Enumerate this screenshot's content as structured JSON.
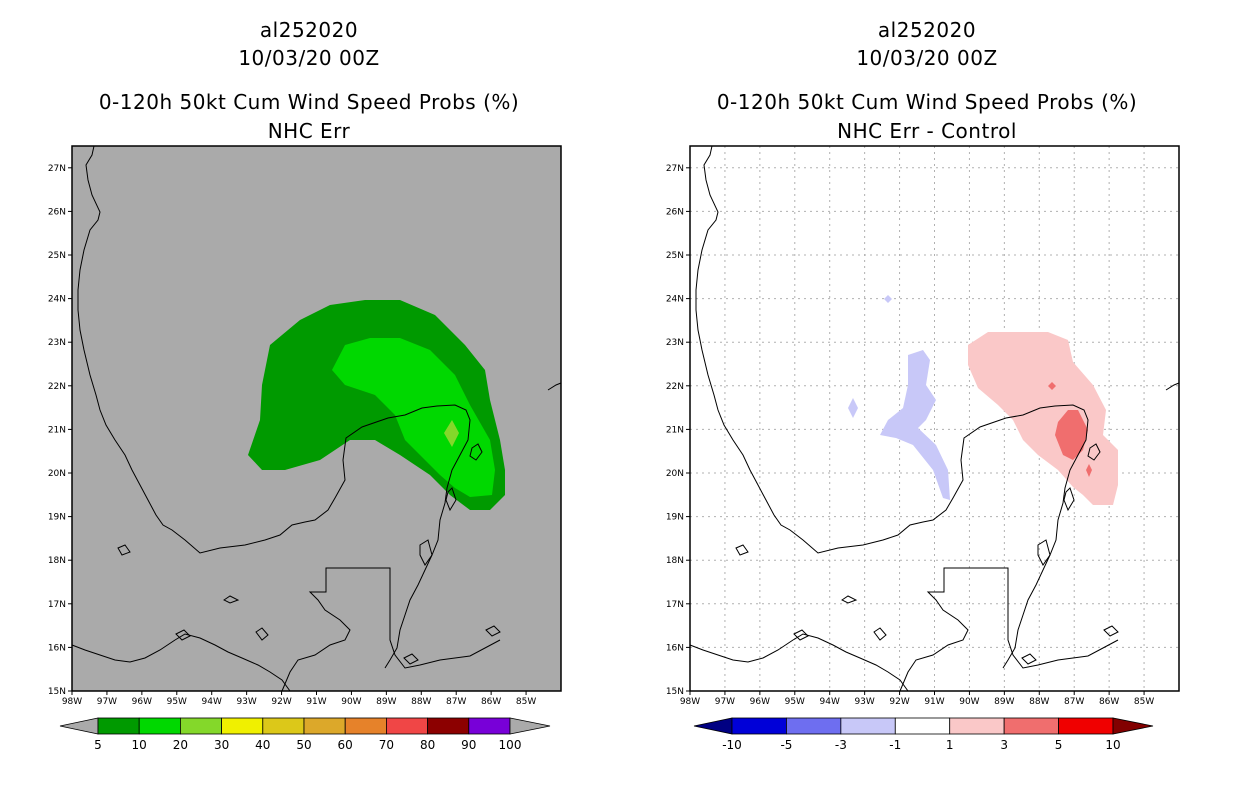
{
  "left": {
    "storm_id": "al252020",
    "datetime": "10/03/20 00Z",
    "product": "0-120h 50kt Cum Wind Speed Probs (%)",
    "subtitle": "NHC Err",
    "background": "#aaaaaa",
    "colorbar": {
      "labels": [
        "5",
        "10",
        "20",
        "30",
        "40",
        "50",
        "60",
        "70",
        "80",
        "90",
        "100"
      ],
      "colors": [
        "#009a00",
        "#00d800",
        "#84d82a",
        "#f0f000",
        "#dcc819",
        "#dca82a",
        "#e6822a",
        "#f04646",
        "#8c0000",
        "#7800d8"
      ],
      "under": "#aaaaaa",
      "over": "#aaaaaa"
    }
  },
  "right": {
    "storm_id": "al252020",
    "datetime": "10/03/20 00Z",
    "product": "0-120h 50kt Cum Wind Speed Probs (%)",
    "subtitle": "NHC Err - Control",
    "background": "#ffffff",
    "colorbar": {
      "labels": [
        "-10",
        "-5",
        "-3",
        "-1",
        "1",
        "3",
        "5",
        "10"
      ],
      "colors": [
        "#0000d8",
        "#6e6ef0",
        "#c8c8f8",
        "#ffffff",
        "#fac8c8",
        "#f06e6e",
        "#f00000"
      ],
      "under": "#000082",
      "over": "#820000"
    }
  },
  "lat_labels": [
    "15N",
    "16N",
    "17N",
    "18N",
    "19N",
    "20N",
    "21N",
    "22N",
    "23N",
    "24N",
    "25N",
    "26N",
    "27N"
  ],
  "lon_labels": [
    "98W",
    "97W",
    "96W",
    "95W",
    "94W",
    "93W",
    "92W",
    "91W",
    "90W",
    "89W",
    "88W",
    "87W",
    "86W",
    "85W"
  ]
}
